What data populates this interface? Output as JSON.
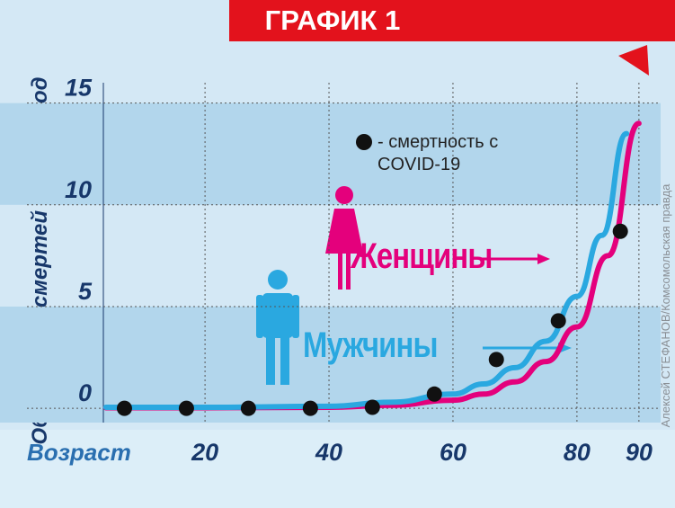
{
  "chart_data": {
    "type": "line",
    "title": "ГРАФИК 1",
    "y_label": "Обычный % смертей каждый год",
    "x_label": "Возраст",
    "credit": "Алексей СТЕФАНОВ/Комсомольская правда",
    "xlim": [
      3.6,
      93.5
    ],
    "ylim": [
      -0.7,
      16
    ],
    "xticks": [
      20,
      40,
      60,
      80,
      90
    ],
    "yticks": [
      0,
      5,
      10,
      15
    ],
    "grid": true,
    "series": [
      {
        "name": "Женщины",
        "type": "line",
        "color": "#e4007c",
        "x": [
          4,
          20,
          40,
          50,
          60,
          65,
          70,
          75,
          80,
          85,
          90
        ],
        "values": [
          0.03,
          0.03,
          0.05,
          0.15,
          0.4,
          0.7,
          1.3,
          2.3,
          4,
          7.5,
          14
        ]
      },
      {
        "name": "Мужчины",
        "type": "line",
        "color": "#2aa8e0",
        "x": [
          4,
          20,
          40,
          50,
          60,
          65,
          70,
          75,
          80,
          84,
          88
        ],
        "values": [
          0.05,
          0.05,
          0.1,
          0.3,
          0.7,
          1.2,
          2,
          3.3,
          5.5,
          8.5,
          13.5
        ]
      },
      {
        "name": "- смертность с COVID-19",
        "type": "scatter",
        "color": "#111111",
        "x": [
          7,
          17,
          27,
          37,
          47,
          57,
          67,
          77,
          87
        ],
        "values": [
          0,
          0,
          0,
          0,
          0.05,
          0.7,
          2.4,
          4.3,
          8.7
        ]
      }
    ]
  }
}
